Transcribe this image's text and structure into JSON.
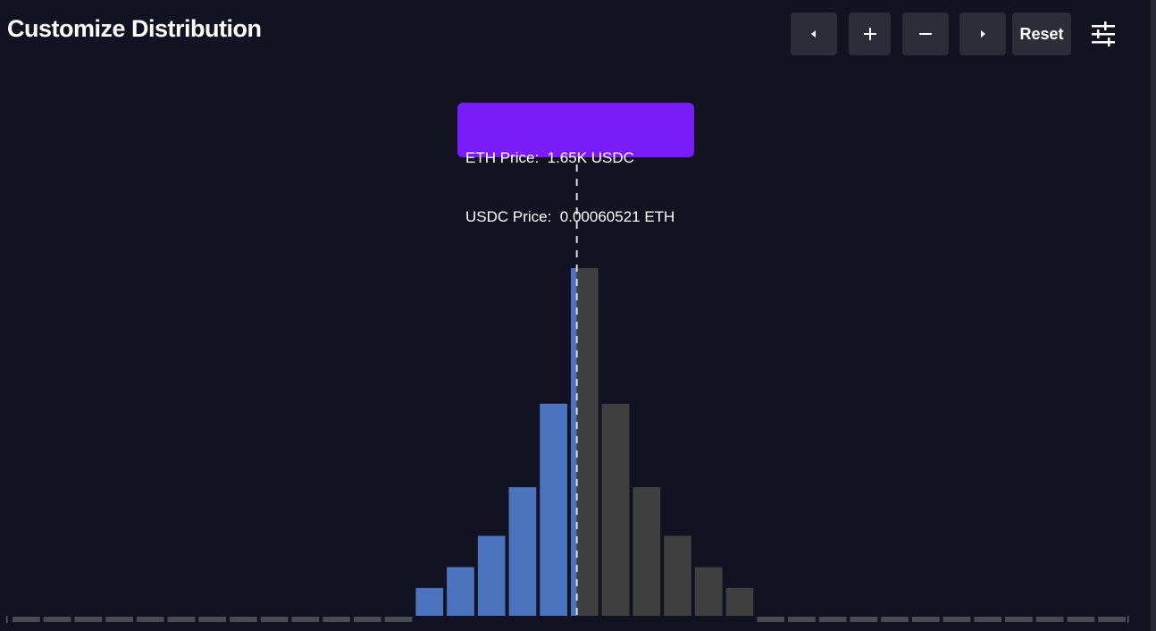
{
  "header": {
    "title": "Customize Distribution",
    "reset_label": "Reset"
  },
  "icons": {
    "left": "caret-left-icon",
    "zoom_in": "plus-icon",
    "zoom_out": "minus-icon",
    "right": "caret-right-icon",
    "settings": "sliders-icon"
  },
  "tooltip": {
    "eth_price": "ETH Price:  1.65K USDC",
    "usdc_price": "USDC Price:  0.00060521 ETH"
  },
  "colors": {
    "background": "#121222",
    "usdc_side": "#4b73be",
    "eth_side": "#3f3f3f",
    "empty_bin": "#4a4a52",
    "tooltip": "#7a1cf8",
    "current_price_line": "#d8d8d8"
  },
  "chart_data": {
    "type": "bar",
    "bins": 36,
    "current_bin_index": 18,
    "values": [
      0,
      0,
      0,
      0,
      0,
      0,
      0,
      0,
      0,
      0,
      0,
      0,
      0,
      0.08,
      0.14,
      0.23,
      0.37,
      0.61,
      1.0,
      0.61,
      0.37,
      0.23,
      0.14,
      0.08,
      0,
      0,
      0,
      0,
      0,
      0,
      0,
      0,
      0,
      0,
      0,
      0
    ],
    "sides": [
      "usdc",
      "usdc",
      "usdc",
      "usdc",
      "usdc",
      "usdc",
      "usdc",
      "usdc",
      "usdc",
      "usdc",
      "usdc",
      "usdc",
      "usdc",
      "usdc",
      "usdc",
      "usdc",
      "usdc",
      "usdc",
      "split",
      "eth",
      "eth",
      "eth",
      "eth",
      "eth",
      "eth",
      "eth",
      "eth",
      "eth",
      "eth",
      "eth",
      "eth",
      "eth",
      "eth",
      "eth",
      "eth",
      "eth"
    ],
    "ylim": [
      0,
      1
    ],
    "grid": false,
    "legend": "none"
  }
}
